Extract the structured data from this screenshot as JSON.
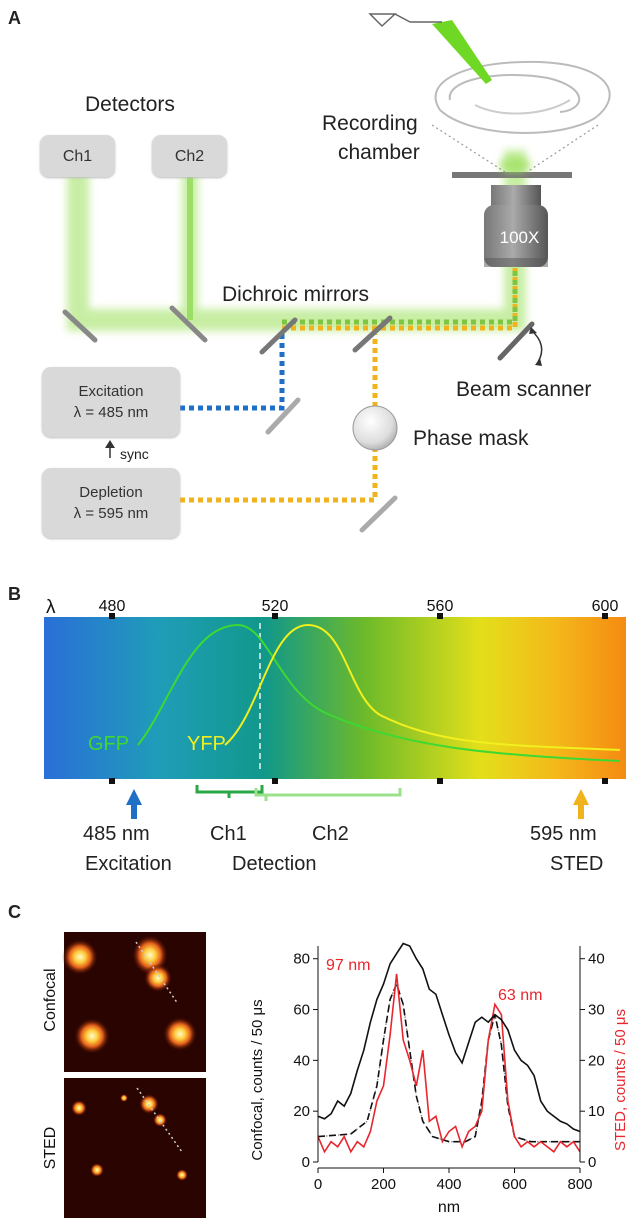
{
  "panelA": {
    "letter": "A",
    "detectors_title": "Detectors",
    "ch1": "Ch1",
    "ch2": "Ch2",
    "recording_line1": "Recording",
    "recording_line2": "chamber",
    "objective": "100X",
    "dichroic": "Dichroic mirrors",
    "beam_scanner": "Beam scanner",
    "phase_mask": "Phase mask",
    "excitation_line1": "Excitation",
    "excitation_line2": "λ = 485 nm",
    "sync": "sync",
    "depletion_line1": "Depletion",
    "depletion_line2": "λ = 595 nm"
  },
  "panelB": {
    "letter": "B",
    "lambda": "λ",
    "ticks": [
      "480",
      "520",
      "560",
      "600"
    ],
    "gfp": "GFP",
    "yfp": "YFP",
    "exc_value": "485 nm",
    "exc_label": "Excitation",
    "ch1": "Ch1",
    "ch2": "Ch2",
    "detection": "Detection",
    "sted_value": "595 nm",
    "sted_label": "STED",
    "colors": {
      "gfp": "#3ed832",
      "yfp": "#f2ef1e",
      "exc_arrow": "#1f6fc7",
      "sted_arrow": "#f1b31b",
      "ch1_bracket": "#2aa845",
      "ch2_bracket": "#9be08a"
    }
  },
  "panelC": {
    "letter": "C",
    "img_label_top": "Confocal",
    "img_label_bottom": "STED",
    "annotation_left": "97 nm",
    "annotation_right": "63 nm"
  },
  "chart_data": {
    "type": "line",
    "xlabel": "nm",
    "ylabel_left": "Confocal, counts / 50 μs",
    "ylabel_right": "STED, counts / 50 μs",
    "xlim": [
      0,
      800
    ],
    "ylim_left": [
      0,
      85
    ],
    "ylim_right": [
      0,
      42.5
    ],
    "x_ticks": [
      0,
      200,
      400,
      600,
      800
    ],
    "y_ticks_left": [
      0,
      20,
      40,
      60,
      80
    ],
    "y_ticks_right": [
      0,
      10,
      20,
      30,
      40
    ],
    "series": [
      {
        "axis": "left",
        "color": "#111111",
        "style": "solid",
        "x": [
          0,
          20,
          40,
          60,
          80,
          100,
          120,
          140,
          160,
          180,
          200,
          220,
          240,
          260,
          280,
          300,
          320,
          340,
          360,
          380,
          400,
          420,
          440,
          460,
          480,
          500,
          520,
          540,
          560,
          580,
          600,
          620,
          640,
          660,
          680,
          700,
          720,
          740,
          760,
          780,
          800
        ],
        "y": [
          18,
          17,
          19,
          24,
          22,
          27,
          36,
          44,
          55,
          64,
          70,
          78,
          82,
          86,
          85,
          80,
          76,
          68,
          66,
          58,
          50,
          43,
          39,
          47,
          55,
          57,
          55,
          58,
          56,
          52,
          44,
          40,
          38,
          34,
          24,
          20,
          18,
          16,
          15,
          13,
          12
        ]
      },
      {
        "axis": "right",
        "color": "#e8262e",
        "style": "solid",
        "x": [
          0,
          20,
          40,
          60,
          80,
          100,
          120,
          140,
          160,
          180,
          200,
          220,
          240,
          260,
          280,
          300,
          320,
          340,
          360,
          380,
          400,
          420,
          440,
          460,
          480,
          500,
          520,
          540,
          560,
          580,
          600,
          620,
          640,
          660,
          680,
          700,
          720,
          740,
          760,
          780,
          800
        ],
        "y": [
          5,
          2,
          4,
          3,
          5,
          2,
          4,
          3,
          6,
          12,
          15,
          25,
          37,
          24,
          20,
          15,
          22,
          8,
          9,
          4,
          6,
          7,
          3,
          6,
          7,
          10,
          24,
          31,
          29,
          12,
          5,
          3,
          4,
          3,
          4,
          3,
          2,
          4,
          3,
          4,
          2
        ]
      },
      {
        "axis": "right",
        "color": "#111111",
        "style": "dashed",
        "x": [
          0,
          100,
          150,
          180,
          200,
          220,
          240,
          260,
          280,
          300,
          320,
          350,
          400,
          450,
          480,
          500,
          520,
          540,
          560,
          580,
          600,
          650,
          700,
          800
        ],
        "y": [
          5,
          5.5,
          8,
          15,
          24,
          32,
          35,
          31,
          22,
          13,
          8,
          5,
          4,
          4,
          5,
          12,
          24,
          29,
          23,
          11,
          5,
          4,
          4,
          4
        ]
      },
      {
        "axis": "right",
        "color": "#888888",
        "style": "dotted",
        "x": [
          0,
          100,
          150,
          180,
          200,
          220,
          240,
          260,
          280,
          300,
          320,
          350,
          400,
          450,
          480,
          500,
          520,
          540,
          560,
          580,
          600,
          650,
          700,
          800
        ],
        "y": [
          5,
          5.5,
          8,
          15,
          24,
          32,
          35,
          31,
          22,
          13,
          8,
          5,
          4,
          4,
          5,
          12,
          24,
          29,
          23,
          11,
          5,
          4,
          4,
          4
        ]
      }
    ]
  }
}
